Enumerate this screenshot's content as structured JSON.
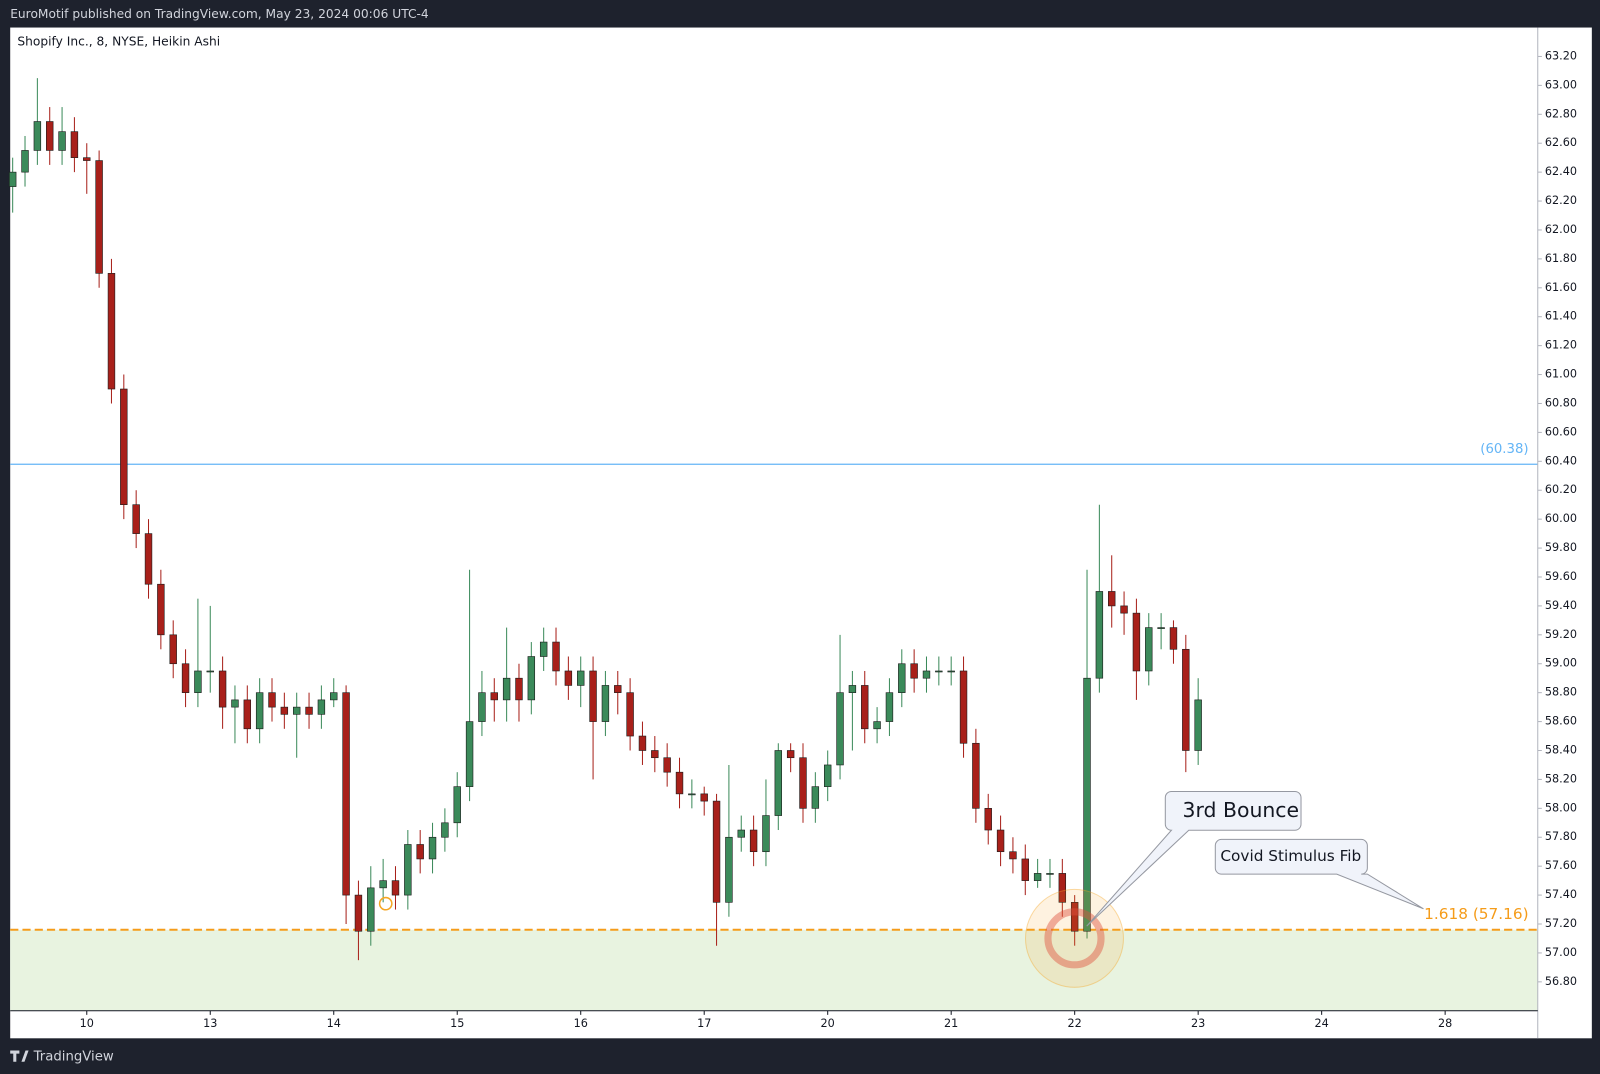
{
  "header": {
    "text": "EuroMotif published on TradingView.com, May 23, 2024 00:06 UTC-4"
  },
  "footer": {
    "brand": "TradingView"
  },
  "chart_data": {
    "type": "candlestick",
    "title": "Shopify Inc., 8, NYSE, Heikin Ashi",
    "up_color": "#3b8a5a",
    "down_color": "#a8201a",
    "x": [
      -0.6,
      -0.5,
      -0.4,
      -0.3,
      -0.2,
      -0.1,
      0,
      0.1,
      0.2,
      0.3,
      0.4,
      0.5,
      0.6,
      0.7,
      0.8,
      0.9,
      1,
      1.1,
      1.2,
      1.3,
      1.4,
      1.5,
      1.6,
      1.7,
      1.8,
      1.9,
      2,
      2.1,
      2.2,
      2.3,
      2.4,
      2.5,
      2.6,
      2.7,
      2.8,
      2.9,
      3,
      3.1,
      3.2,
      3.3,
      3.4,
      3.5,
      3.6,
      3.7,
      3.8,
      3.9,
      4,
      4.1,
      4.2,
      4.3,
      4.4,
      4.5,
      4.6,
      4.7,
      4.8,
      4.9,
      5,
      5.1,
      5.2,
      5.3,
      5.4,
      5.5,
      5.6,
      5.7,
      5.8,
      5.9,
      6,
      6.1,
      6.2,
      6.3,
      6.4,
      6.5,
      6.6,
      6.7,
      6.8,
      6.9,
      7,
      7.1,
      7.2,
      7.3,
      7.4,
      7.5,
      7.6,
      7.7,
      7.8,
      7.9,
      8,
      8.1,
      8.2,
      8.3,
      8.4,
      8.5,
      8.6,
      8.7,
      8.8,
      8.9,
      9
    ],
    "open": [
      62.3,
      62.4,
      62.55,
      62.75,
      62.55,
      62.68,
      62.5,
      62.48,
      61.7,
      60.9,
      60.1,
      59.9,
      59.55,
      59.2,
      59.0,
      58.8,
      58.95,
      58.95,
      58.7,
      58.75,
      58.55,
      58.8,
      58.7,
      58.65,
      58.7,
      58.65,
      58.75,
      58.8,
      57.4,
      57.15,
      57.45,
      57.5,
      57.4,
      57.75,
      57.65,
      57.8,
      57.9,
      58.15,
      58.6,
      58.8,
      58.75,
      58.9,
      58.75,
      59.05,
      59.15,
      58.95,
      58.85,
      58.95,
      58.6,
      58.85,
      58.8,
      58.5,
      58.4,
      58.35,
      58.25,
      58.1,
      58.1,
      58.05,
      57.35,
      57.8,
      57.85,
      57.7,
      57.95,
      58.4,
      58.35,
      58.0,
      58.15,
      58.3,
      58.8,
      58.85,
      58.55,
      58.6,
      58.8,
      59.0,
      58.9,
      58.95,
      58.95,
      58.95,
      58.45,
      58.0,
      57.85,
      57.7,
      57.65,
      57.5,
      57.55,
      57.55,
      57.35,
      57.15,
      58.9,
      59.5,
      59.4,
      59.35,
      58.95,
      59.25,
      59.25,
      59.1,
      58.4
    ],
    "high": [
      62.5,
      62.65,
      63.05,
      62.85,
      62.85,
      62.78,
      62.6,
      62.55,
      61.8,
      61.0,
      60.2,
      60.0,
      59.65,
      59.3,
      59.1,
      59.45,
      59.4,
      59.05,
      58.85,
      58.85,
      58.9,
      58.9,
      58.8,
      58.8,
      58.8,
      58.85,
      58.9,
      58.85,
      57.5,
      57.6,
      57.65,
      57.6,
      57.85,
      57.85,
      57.9,
      58.0,
      58.25,
      59.65,
      58.95,
      58.9,
      59.25,
      59.0,
      59.15,
      59.25,
      59.25,
      59.05,
      59.05,
      59.05,
      58.95,
      58.95,
      58.9,
      58.6,
      58.5,
      58.45,
      58.35,
      58.2,
      58.15,
      58.1,
      58.3,
      57.95,
      57.95,
      58.2,
      58.45,
      58.45,
      58.45,
      58.25,
      58.4,
      59.2,
      58.95,
      58.95,
      58.7,
      58.9,
      59.1,
      59.1,
      59.05,
      59.05,
      59.05,
      59.05,
      58.55,
      58.1,
      57.95,
      57.8,
      57.75,
      57.65,
      57.65,
      57.65,
      57.4,
      59.65,
      60.1,
      59.75,
      59.5,
      59.45,
      59.35,
      59.35,
      59.3,
      59.2,
      58.9
    ],
    "low": [
      62.12,
      62.3,
      62.45,
      62.45,
      62.45,
      62.4,
      62.25,
      61.6,
      60.8,
      60.0,
      59.8,
      59.45,
      59.1,
      58.9,
      58.7,
      58.7,
      58.8,
      58.55,
      58.45,
      58.45,
      58.45,
      58.6,
      58.55,
      58.35,
      58.55,
      58.55,
      58.7,
      57.2,
      56.95,
      57.05,
      57.35,
      57.3,
      57.3,
      57.55,
      57.55,
      57.7,
      57.8,
      58.05,
      58.5,
      58.6,
      58.6,
      58.6,
      58.65,
      58.95,
      58.85,
      58.75,
      58.7,
      58.2,
      58.5,
      58.65,
      58.4,
      58.3,
      58.25,
      58.15,
      58.0,
      58.0,
      57.95,
      57.05,
      57.25,
      57.7,
      57.6,
      57.6,
      57.85,
      58.25,
      57.9,
      57.9,
      58.05,
      58.2,
      58.4,
      58.45,
      58.45,
      58.5,
      58.7,
      58.8,
      58.8,
      58.85,
      58.85,
      58.35,
      57.9,
      57.75,
      57.6,
      57.55,
      57.4,
      57.45,
      57.45,
      57.25,
      57.05,
      57.1,
      58.8,
      59.25,
      59.2,
      58.75,
      58.85,
      59.1,
      59.0,
      58.25,
      58.3
    ],
    "close": [
      62.4,
      62.55,
      62.75,
      62.55,
      62.68,
      62.5,
      62.48,
      61.7,
      60.9,
      60.1,
      59.9,
      59.55,
      59.2,
      59.0,
      58.8,
      58.95,
      58.95,
      58.7,
      58.75,
      58.55,
      58.8,
      58.7,
      58.65,
      58.7,
      58.65,
      58.75,
      58.8,
      57.4,
      57.15,
      57.45,
      57.5,
      57.4,
      57.75,
      57.65,
      57.8,
      57.9,
      58.15,
      58.6,
      58.8,
      58.75,
      58.9,
      58.75,
      59.05,
      59.15,
      58.95,
      58.85,
      58.95,
      58.6,
      58.85,
      58.8,
      58.5,
      58.4,
      58.35,
      58.25,
      58.1,
      58.1,
      58.05,
      57.35,
      57.8,
      57.85,
      57.7,
      57.95,
      58.4,
      58.35,
      58.0,
      58.15,
      58.3,
      58.8,
      58.85,
      58.55,
      58.6,
      58.8,
      59.0,
      58.9,
      58.95,
      58.95,
      58.95,
      58.45,
      58.0,
      57.85,
      57.7,
      57.65,
      57.5,
      57.55,
      57.55,
      57.35,
      57.15,
      58.9,
      59.5,
      59.4,
      59.35,
      58.95,
      59.25,
      59.25,
      59.1,
      58.4,
      58.75
    ],
    "xlim": [
      -0.62,
      11.75
    ],
    "xticks": [
      {
        "value": 0,
        "label": "10"
      },
      {
        "value": 1,
        "label": "13"
      },
      {
        "value": 2,
        "label": "14"
      },
      {
        "value": 3,
        "label": "15"
      },
      {
        "value": 4,
        "label": "16"
      },
      {
        "value": 5,
        "label": "17"
      },
      {
        "value": 6,
        "label": "20"
      },
      {
        "value": 7,
        "label": "21"
      },
      {
        "value": 8,
        "label": "22"
      },
      {
        "value": 9,
        "label": "23"
      },
      {
        "value": 10,
        "label": "24"
      },
      {
        "value": 11,
        "label": "28"
      }
    ],
    "ylim": [
      56.6,
      63.4
    ],
    "yticks": [
      {
        "value": 56.8,
        "label": "56.80"
      },
      {
        "value": 57,
        "label": "57.00"
      },
      {
        "value": 57.2,
        "label": "57.20"
      },
      {
        "value": 57.4,
        "label": "57.40"
      },
      {
        "value": 57.6,
        "label": "57.60"
      },
      {
        "value": 57.8,
        "label": "57.80"
      },
      {
        "value": 58,
        "label": "58.00"
      },
      {
        "value": 58.2,
        "label": "58.20"
      },
      {
        "value": 58.4,
        "label": "58.40"
      },
      {
        "value": 58.6,
        "label": "58.60"
      },
      {
        "value": 58.8,
        "label": "58.80"
      },
      {
        "value": 59,
        "label": "59.00"
      },
      {
        "value": 59.2,
        "label": "59.20"
      },
      {
        "value": 59.4,
        "label": "59.40"
      },
      {
        "value": 59.6,
        "label": "59.60"
      },
      {
        "value": 59.8,
        "label": "59.80"
      },
      {
        "value": 60,
        "label": "60.00"
      },
      {
        "value": 60.2,
        "label": "60.20"
      },
      {
        "value": 60.4,
        "label": "60.40"
      },
      {
        "value": 60.6,
        "label": "60.60"
      },
      {
        "value": 60.8,
        "label": "60.80"
      },
      {
        "value": 61,
        "label": "61.00"
      },
      {
        "value": 61.2,
        "label": "61.20"
      },
      {
        "value": 61.4,
        "label": "61.40"
      },
      {
        "value": 61.6,
        "label": "61.60"
      },
      {
        "value": 61.8,
        "label": "61.80"
      },
      {
        "value": 62,
        "label": "62.00"
      },
      {
        "value": 62.2,
        "label": "62.20"
      },
      {
        "value": 62.4,
        "label": "62.40"
      },
      {
        "value": 62.6,
        "label": "62.60"
      },
      {
        "value": 62.8,
        "label": "62.80"
      },
      {
        "value": 63,
        "label": "63.00"
      },
      {
        "value": 63.2,
        "label": "63.20"
      }
    ],
    "grid": false,
    "lines": [
      {
        "value": 60.38,
        "label": "(60.38)",
        "color": "#64b5f6",
        "dashed": false
      },
      {
        "value": 57.16,
        "label": "1.618 (57.16)",
        "color": "#f59c1a",
        "dashed": true,
        "shade": "#e8f3e0"
      }
    ],
    "annotations": [
      {
        "text": "3rd Bounce"
      },
      {
        "text": "Covid Stimulus Fib"
      }
    ]
  }
}
